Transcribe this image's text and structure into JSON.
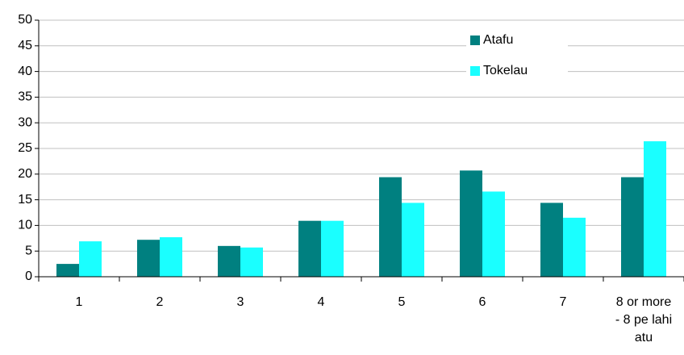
{
  "chart_data": {
    "type": "bar",
    "categories": [
      "1",
      "2",
      "3",
      "4",
      "5",
      "6",
      "7",
      "8 or more - 8 pe lahi atu"
    ],
    "series": [
      {
        "name": "Atafu",
        "color": "#008080",
        "values": [
          2.5,
          7.2,
          6,
          10.9,
          19.4,
          20.7,
          14.4,
          19.4
        ]
      },
      {
        "name": "Tokelau",
        "color": "#1affff",
        "values": [
          6.9,
          7.7,
          5.7,
          10.9,
          14.4,
          16.6,
          11.5,
          26.4
        ]
      }
    ],
    "ylim": [
      0,
      50
    ],
    "yticks": [
      0,
      5,
      10,
      15,
      20,
      25,
      30,
      35,
      40,
      45,
      50
    ],
    "grid": true,
    "legend": "upper right"
  }
}
